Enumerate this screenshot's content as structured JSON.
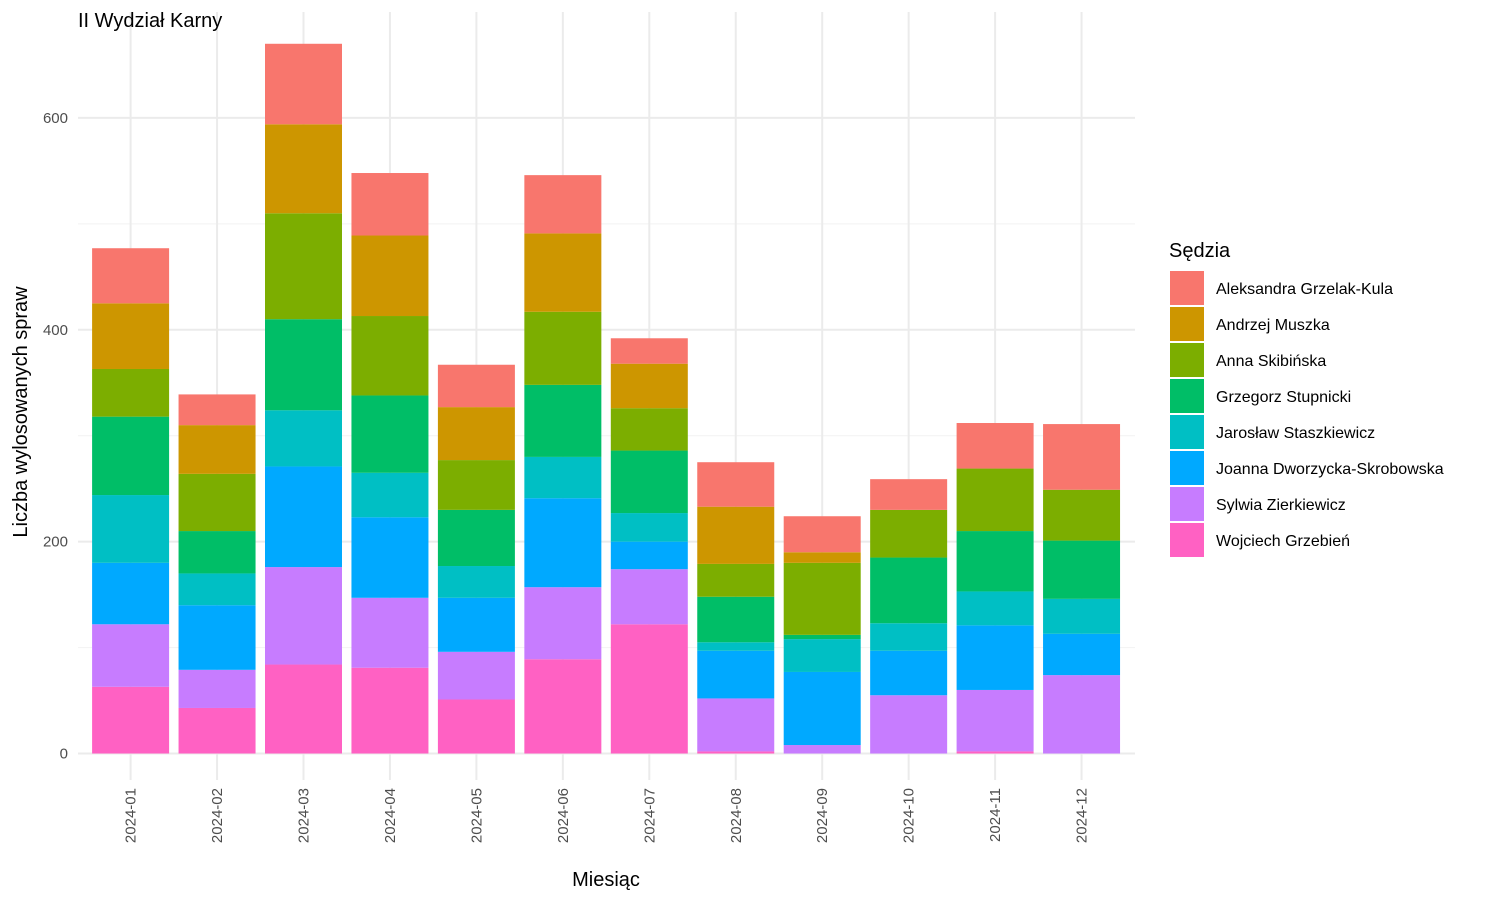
{
  "chart_data": {
    "type": "bar",
    "stacked": true,
    "title": "II Wydział Karny",
    "xlabel": "Miesiąc",
    "ylabel": "Liczba wylosowanych spraw",
    "ylim": [
      -25,
      700
    ],
    "yticks": [
      0,
      200,
      400,
      600
    ],
    "grid": true,
    "legend": {
      "title": "Sędzia",
      "placement": "right"
    },
    "categories": [
      "2024-01",
      "2024-02",
      "2024-03",
      "2024-04",
      "2024-05",
      "2024-06",
      "2024-07",
      "2024-08",
      "2024-09",
      "2024-10",
      "2024-11",
      "2024-12"
    ],
    "series": [
      {
        "name": "Wojciech Grzebień",
        "color": "#FF61C3",
        "values": [
          63,
          43,
          84,
          81,
          51,
          89,
          122,
          2,
          0,
          0,
          2,
          0
        ]
      },
      {
        "name": "Sylwia Zierkiewicz",
        "color": "#C77CFF",
        "values": [
          59,
          36,
          92,
          66,
          45,
          68,
          52,
          50,
          8,
          55,
          58,
          74
        ]
      },
      {
        "name": "Joanna Dworzycka-Skrobowska",
        "color": "#00A9FF",
        "values": [
          58,
          61,
          95,
          76,
          51,
          84,
          26,
          45,
          69,
          42,
          61,
          39
        ]
      },
      {
        "name": "Jarosław Staszkiewicz",
        "color": "#00BFC4",
        "values": [
          64,
          30,
          53,
          42,
          30,
          39,
          27,
          8,
          31,
          26,
          32,
          33
        ]
      },
      {
        "name": "Grzegorz Stupnicki",
        "color": "#00BE67",
        "values": [
          74,
          40,
          86,
          73,
          53,
          68,
          59,
          43,
          4,
          62,
          57,
          55
        ]
      },
      {
        "name": "Anna Skibińska",
        "color": "#7CAE00",
        "values": [
          45,
          54,
          100,
          75,
          47,
          69,
          40,
          31,
          68,
          45,
          59,
          48
        ]
      },
      {
        "name": "Andrzej Muszka",
        "color": "#CD9600",
        "values": [
          62,
          46,
          84,
          76,
          50,
          74,
          42,
          54,
          10,
          0,
          0,
          0
        ]
      },
      {
        "name": "Aleksandra Grzelak-Kula",
        "color": "#F8766D",
        "values": [
          52,
          29,
          76,
          59,
          40,
          55,
          24,
          42,
          34,
          29,
          43,
          62
        ]
      }
    ],
    "legend_order": [
      "Aleksandra Grzelak-Kula",
      "Andrzej Muszka",
      "Anna Skibińska",
      "Grzegorz Stupnicki",
      "Jarosław Staszkiewicz",
      "Joanna Dworzycka-Skrobowska",
      "Sylwia Zierkiewicz",
      "Wojciech Grzebień"
    ]
  }
}
